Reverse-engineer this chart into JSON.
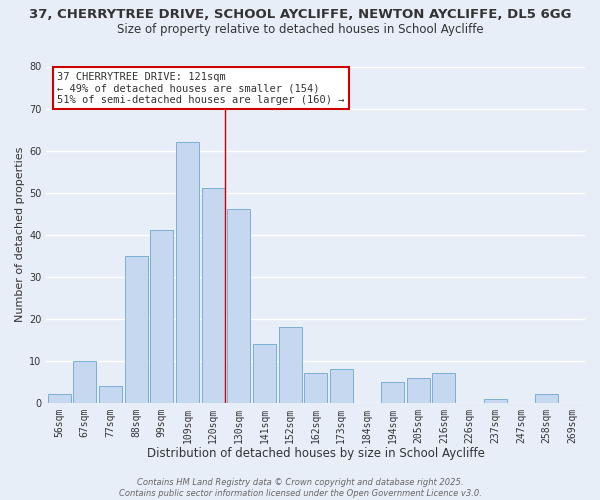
{
  "title_line1": "37, CHERRYTREE DRIVE, SCHOOL AYCLIFFE, NEWTON AYCLIFFE, DL5 6GG",
  "title_line2": "Size of property relative to detached houses in School Aycliffe",
  "xlabel": "Distribution of detached houses by size in School Aycliffe",
  "ylabel": "Number of detached properties",
  "bar_labels": [
    "56sqm",
    "67sqm",
    "77sqm",
    "88sqm",
    "99sqm",
    "109sqm",
    "120sqm",
    "130sqm",
    "141sqm",
    "152sqm",
    "162sqm",
    "173sqm",
    "184sqm",
    "194sqm",
    "205sqm",
    "216sqm",
    "226sqm",
    "237sqm",
    "247sqm",
    "258sqm",
    "269sqm"
  ],
  "bar_values": [
    2,
    10,
    4,
    35,
    41,
    62,
    51,
    46,
    14,
    18,
    7,
    8,
    0,
    5,
    6,
    7,
    0,
    1,
    0,
    2,
    0
  ],
  "bar_color": "#c5d8f0",
  "bar_edge_color": "#7aafd4",
  "annotation_title": "37 CHERRYTREE DRIVE: 121sqm",
  "annotation_line2": "← 49% of detached houses are smaller (154)",
  "annotation_line3": "51% of semi-detached houses are larger (160) →",
  "annotation_box_color": "#ffffff",
  "annotation_box_edge_color": "#cc0000",
  "vline_color": "#cc0000",
  "ylim": [
    0,
    80
  ],
  "footer_line1": "Contains HM Land Registry data © Crown copyright and database right 2025.",
  "footer_line2": "Contains public sector information licensed under the Open Government Licence v3.0.",
  "background_color": "#e8eef8",
  "grid_color": "#ffffff",
  "title_fontsize": 9.5,
  "subtitle_fontsize": 8.5,
  "xlabel_fontsize": 8.5,
  "ylabel_fontsize": 8,
  "tick_fontsize": 7,
  "footer_fontsize": 6,
  "annotation_fontsize": 7.5
}
